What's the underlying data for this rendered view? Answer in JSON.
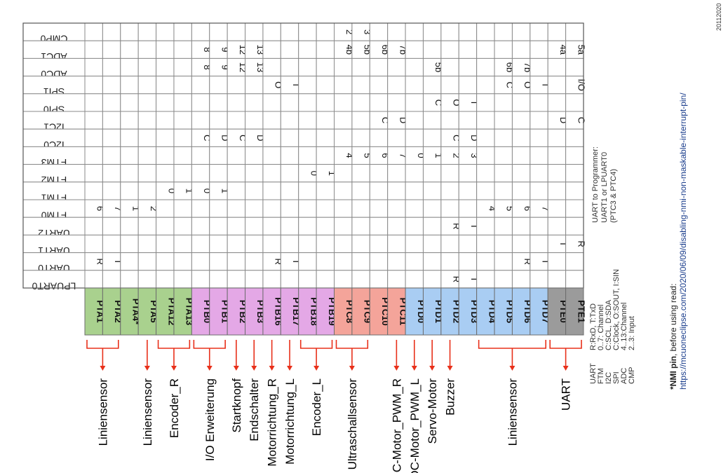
{
  "columns": [
    "CMP0",
    "ADC1",
    "ADC0",
    "SPI1",
    "SPI0",
    "I2C1",
    "I2C0",
    "FTM3",
    "FTM2",
    "FTM1",
    "FTM0",
    "UART2",
    "UART1",
    "UART0",
    "LPUART0"
  ],
  "pins": [
    {
      "label": "PTA1",
      "color": "#a9d18e",
      "cells": [
        "",
        "",
        "",
        "",
        "",
        "",
        "",
        "",
        "",
        "",
        "6",
        "",
        "",
        "R",
        ""
      ]
    },
    {
      "label": "PTA2",
      "color": "#a9d18e",
      "cells": [
        "",
        "",
        "",
        "",
        "",
        "",
        "",
        "",
        "",
        "",
        "7",
        "",
        "",
        "T",
        ""
      ]
    },
    {
      "label": "PTA4*",
      "color": "#a9d18e",
      "cells": [
        "",
        "",
        "",
        "",
        "",
        "",
        "",
        "",
        "",
        "",
        "1",
        "",
        "",
        "",
        ""
      ]
    },
    {
      "label": "PTA5",
      "color": "#a9d18e",
      "cells": [
        "",
        "",
        "",
        "",
        "",
        "",
        "",
        "",
        "",
        "",
        "2",
        "",
        "",
        "",
        ""
      ]
    },
    {
      "label": "PTA12",
      "color": "#a9d18e",
      "cells": [
        "",
        "",
        "",
        "",
        "",
        "",
        "",
        "",
        "",
        "0",
        "",
        "",
        "",
        "",
        ""
      ]
    },
    {
      "label": "PTA13",
      "color": "#a9d18e",
      "cells": [
        "",
        "",
        "",
        "",
        "",
        "",
        "",
        "",
        "",
        "1",
        "",
        "",
        "",
        "",
        ""
      ]
    },
    {
      "label": "PTB0",
      "color": "#e4a8e6",
      "cells": [
        "",
        "8",
        "8",
        "",
        "",
        "",
        "C",
        "",
        "",
        "0",
        "",
        "",
        "",
        "",
        ""
      ]
    },
    {
      "label": "PTB1",
      "color": "#e4a8e6",
      "cells": [
        "",
        "9",
        "9",
        "",
        "",
        "",
        "D",
        "",
        "",
        "1",
        "",
        "",
        "",
        "",
        ""
      ]
    },
    {
      "label": "PTB2",
      "color": "#e4a8e6",
      "cells": [
        "",
        "12",
        "12",
        "",
        "",
        "",
        "C",
        "",
        "",
        "",
        "",
        "",
        "",
        "",
        ""
      ]
    },
    {
      "label": "PTB3",
      "color": "#e4a8e6",
      "cells": [
        "",
        "13",
        "13",
        "",
        "",
        "",
        "D",
        "",
        "",
        "",
        "",
        "",
        "",
        "",
        ""
      ]
    },
    {
      "label": "PTB16",
      "color": "#e4a8e6",
      "cells": [
        "",
        "",
        "",
        "O",
        "",
        "",
        "",
        "",
        "",
        "",
        "",
        "",
        "",
        "R",
        ""
      ]
    },
    {
      "label": "PTB17",
      "color": "#e4a8e6",
      "cells": [
        "",
        "",
        "",
        "I",
        "",
        "",
        "",
        "",
        "",
        "",
        "",
        "",
        "",
        "T",
        ""
      ]
    },
    {
      "label": "PTB18",
      "color": "#e4a8e6",
      "cells": [
        "",
        "",
        "",
        "",
        "",
        "",
        "",
        "",
        "0",
        "",
        "",
        "",
        "",
        "",
        ""
      ]
    },
    {
      "label": "PTB19",
      "color": "#e4a8e6",
      "cells": [
        "",
        "",
        "",
        "",
        "",
        "",
        "",
        "",
        "1",
        "",
        "",
        "",
        "",
        "",
        ""
      ]
    },
    {
      "label": "PTC8",
      "color": "#f4a49a",
      "cells": [
        "2",
        "4b",
        "",
        "",
        "",
        "",
        "",
        "4",
        "",
        "",
        "",
        "",
        "",
        "",
        ""
      ]
    },
    {
      "label": "PTC9",
      "color": "#f4a49a",
      "cells": [
        "3",
        "5b",
        "",
        "",
        "",
        "",
        "",
        "5",
        "",
        "",
        "",
        "",
        "",
        "",
        ""
      ]
    },
    {
      "label": "PTC10",
      "color": "#f4a49a",
      "cells": [
        "",
        "6b",
        "",
        "",
        "",
        "C",
        "",
        "6",
        "",
        "",
        "",
        "",
        "",
        "",
        ""
      ]
    },
    {
      "label": "PTC11",
      "color": "#f4a49a",
      "cells": [
        "",
        "7b",
        "",
        "",
        "",
        "D",
        "",
        "7",
        "",
        "",
        "",
        "",
        "",
        "",
        ""
      ]
    },
    {
      "label": "PTD0",
      "color": "#a9cdf3",
      "cells": [
        "",
        "",
        "",
        "",
        "",
        "",
        "",
        "0",
        "",
        "",
        "",
        "",
        "",
        "",
        ""
      ]
    },
    {
      "label": "PTD1",
      "color": "#a9cdf3",
      "cells": [
        "",
        "",
        "5b",
        "",
        "C",
        "",
        "",
        "1",
        "",
        "",
        "",
        "",
        "",
        "",
        ""
      ]
    },
    {
      "label": "PTD2",
      "color": "#a9cdf3",
      "cells": [
        "",
        "",
        "",
        "",
        "O",
        "",
        "C",
        "2",
        "",
        "",
        "",
        "R",
        "",
        "",
        "R"
      ]
    },
    {
      "label": "PTD3",
      "color": "#a9cdf3",
      "cells": [
        "",
        "",
        "",
        "",
        "I",
        "",
        "D",
        "3",
        "",
        "",
        "",
        "T",
        "",
        "",
        "T"
      ]
    },
    {
      "label": "PTD4",
      "color": "#a9cdf3",
      "cells": [
        "",
        "",
        "",
        "",
        "",
        "",
        "",
        "",
        "",
        "",
        "4",
        "",
        "",
        "",
        ""
      ]
    },
    {
      "label": "PTD5",
      "color": "#a9cdf3",
      "cells": [
        "",
        "",
        "6b",
        "C",
        "",
        "",
        "",
        "",
        "",
        "",
        "5",
        "",
        "",
        "",
        ""
      ]
    },
    {
      "label": "PTD6",
      "color": "#a9cdf3",
      "cells": [
        "",
        "",
        "7b",
        "O",
        "",
        "",
        "",
        "",
        "",
        "",
        "6",
        "",
        "",
        "R",
        ""
      ]
    },
    {
      "label": "PTD7",
      "color": "#a9cdf3",
      "cells": [
        "",
        "",
        "",
        "I",
        "",
        "",
        "",
        "",
        "",
        "",
        "7",
        "",
        "",
        "T",
        ""
      ]
    },
    {
      "label": "PTE0",
      "color": "#9b9b9b",
      "cells": [
        "",
        "4a",
        "",
        "",
        "",
        "D",
        "",
        "",
        "",
        "",
        "",
        "",
        "T",
        "",
        ""
      ]
    },
    {
      "label": "PTE1",
      "color": "#9b9b9b",
      "cells": [
        "",
        "5a",
        "",
        "I/O",
        "",
        "C",
        "",
        "",
        "",
        "",
        "",
        "",
        "R",
        "",
        ""
      ]
    }
  ],
  "functions": [
    {
      "label": "Liniensensor",
      "from": 0,
      "to": 1
    },
    {
      "label": "Liniensensor",
      "from": 3,
      "to": 3
    },
    {
      "label": "Encoder_R",
      "from": 4,
      "to": 5
    },
    {
      "label": "I/O Erweiterung",
      "from": 6,
      "to": 7
    },
    {
      "label": "Startknopf",
      "from": 8,
      "to": 8
    },
    {
      "label": "Endschalter",
      "from": 9,
      "to": 9
    },
    {
      "label": "Motorrichtung_R",
      "from": 10,
      "to": 10
    },
    {
      "label": "Motorrichtung_L",
      "from": 11,
      "to": 11
    },
    {
      "label": "Encoder_L",
      "from": 12,
      "to": 13
    },
    {
      "label": "Ultraschallsensor",
      "from": 14,
      "to": 15
    },
    {
      "label": "DC-Motor_PWM_R",
      "from": 17,
      "to": 17
    },
    {
      "label": "DC-Motor_PWM_L",
      "from": 18,
      "to": 18
    },
    {
      "label": "Servo-Motor",
      "from": 19,
      "to": 19
    },
    {
      "label": "Buzzer",
      "from": 20,
      "to": 20
    },
    {
      "label": "Liniensensor",
      "from": 22,
      "to": 25
    },
    {
      "label": "UART",
      "from": 26,
      "to": 27
    }
  ],
  "legend": {
    "keys": [
      "UART",
      "FTM",
      "I2C",
      "SPI",
      "ADC",
      "CMP"
    ],
    "values": [
      "R:RxD, T:TxD",
      "0..7: Channel",
      "C:SCL, D:SDA",
      "C:Clock, O:SOUT, I:SIN",
      "4..13:Channel",
      "2..3: Input"
    ]
  },
  "programmer_note": [
    "UART to Programmer:",
    "UART1 or LPUART0",
    "(PTC3 & PTC4)"
  ],
  "nmi_note": {
    "title": "*NMI pin",
    "text": ", before using read:",
    "url": "https://mcuoneclipse.com/2020/06/09/disabling-nmi-non-maskable-interrupt-pin/"
  },
  "date_code": "20112020"
}
